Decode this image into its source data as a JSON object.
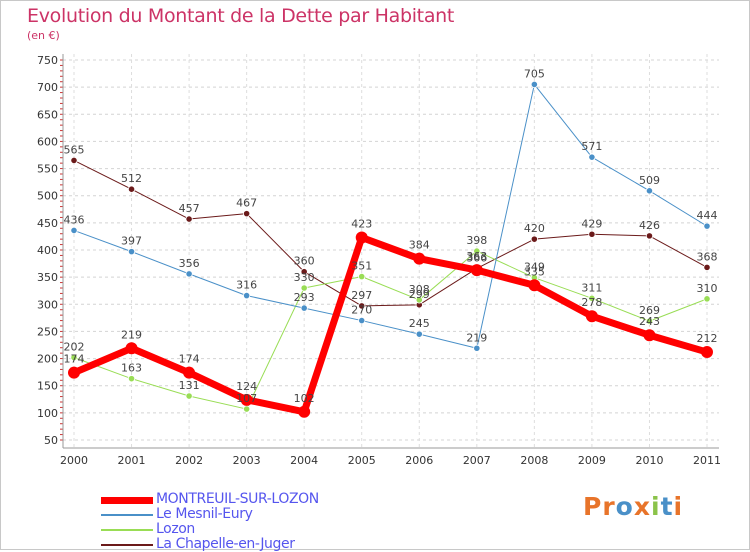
{
  "chart_data": {
    "type": "line",
    "title": "Evolution du Montant de la Dette par Habitant",
    "subtitle": "(en €)",
    "xlabel": "",
    "ylabel": "",
    "x": [
      "2000",
      "2001",
      "2002",
      "2003",
      "2004",
      "2005",
      "2006",
      "2007",
      "2008",
      "2009",
      "2010",
      "2011"
    ],
    "ylim": [
      50,
      750
    ],
    "yticks": [
      50,
      100,
      150,
      200,
      250,
      300,
      350,
      400,
      450,
      500,
      550,
      600,
      650,
      700,
      750
    ],
    "grid": "horizontal dashed",
    "legend_position": "bottom-left",
    "series": [
      {
        "name": "La Chapelle-en-Juger",
        "color": "#6b1a1a",
        "width": 1,
        "values": [
          565,
          512,
          457,
          467,
          360,
          297,
          299,
          366,
          420,
          429,
          426,
          368
        ],
        "labels": [
          "565",
          "512",
          "457",
          "467",
          "360",
          "297",
          "299",
          "366",
          "420",
          "429",
          "426",
          "368"
        ]
      },
      {
        "name": "Lozon",
        "color": "#99dd55",
        "width": 1,
        "values": [
          202,
          163,
          131,
          107,
          330,
          351,
          308,
          398,
          349,
          311,
          269,
          310
        ],
        "labels": [
          "202",
          "163",
          "131",
          "107",
          "330",
          "351",
          "308",
          "398",
          "349",
          "311",
          "269",
          "310"
        ]
      },
      {
        "name": "Le Mesnil-Eury",
        "color": "#4a90c8",
        "width": 1,
        "values": [
          436,
          397,
          356,
          316,
          293,
          270,
          245,
          219,
          705,
          571,
          509,
          444
        ],
        "labels": [
          "436",
          "397",
          "356",
          "316",
          "293",
          "270",
          "245",
          "219",
          "705",
          "571",
          "509",
          "444"
        ]
      },
      {
        "name": "MONTREUIL-SUR-LOZON",
        "color": "#ff0000",
        "width": 7,
        "values": [
          174,
          219,
          174,
          124,
          102,
          423,
          384,
          363,
          335,
          278,
          243,
          212
        ],
        "labels": [
          "174",
          "219",
          "174",
          "124",
          "102",
          "423",
          "384",
          "363",
          "335",
          "278",
          "243",
          "212"
        ]
      }
    ]
  },
  "legend": [
    {
      "label": "MONTREUIL-SUR-LOZON",
      "color": "#ff0000",
      "text_color": "#5555ee",
      "thickness": 7
    },
    {
      "label": "Le Mesnil-Eury",
      "color": "#4a90c8",
      "text_color": "#5555ee",
      "thickness": 2
    },
    {
      "label": "Lozon",
      "color": "#99dd55",
      "text_color": "#5555ee",
      "thickness": 2
    },
    {
      "label": "La Chapelle-en-Juger",
      "color": "#6b1a1a",
      "text_color": "#5555ee",
      "thickness": 2
    }
  ],
  "logo": {
    "text": "Proxiti",
    "colors": [
      "#e8742a",
      "#e8742a",
      "#4a90c8",
      "#e8742a",
      "#8bc34a",
      "#4a90c8",
      "#e8742a"
    ]
  }
}
